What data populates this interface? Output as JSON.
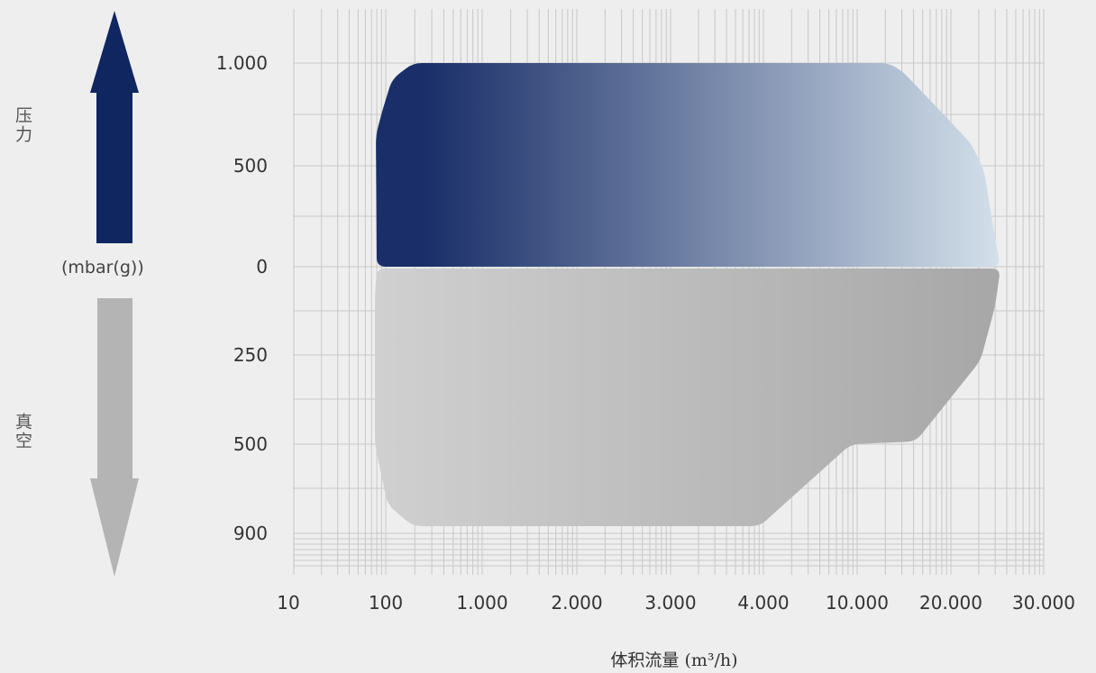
{
  "labels": {
    "pressure": "压力",
    "vacuum": "真空",
    "unit": "(mbar(g))"
  },
  "colors": {
    "background": "#eeeeee",
    "grid": "#c8c8c8",
    "pressure_arrow": "#0f2660",
    "vacuum_arrow": "#b4b4b4",
    "pressure_gradient_start": "#1a2f69",
    "pressure_gradient_end": "#d3e0ea",
    "vacuum_gradient_start": "#d0d0d0",
    "vacuum_gradient_end": "#a7a7a7"
  },
  "chart_data": {
    "type": "area",
    "xlabel": "体积流量 (m³/h)",
    "x_ticks": [
      "10",
      "100",
      "1.000",
      "2.000",
      "3.000",
      "4.000",
      "10.000",
      "20.000",
      "30.000"
    ],
    "pressure_ticks": [
      "1.000",
      "500",
      "0"
    ],
    "vacuum_ticks": [
      "250",
      "500",
      "900"
    ],
    "grid": true,
    "series": [
      {
        "region": "pressure",
        "points": [
          {
            "x": "100",
            "y": 0
          },
          {
            "x": "100",
            "y": 680
          },
          {
            "x": "100",
            "y": 1000
          },
          {
            "x": "10.000",
            "y": 1000
          },
          {
            "x": "20.000",
            "y": 600
          },
          {
            "x": "30.000",
            "y": 0
          }
        ]
      },
      {
        "region": "vacuum",
        "points": [
          {
            "x": "100",
            "y": 0
          },
          {
            "x": "100",
            "y": 500
          },
          {
            "x": "100",
            "y": 900
          },
          {
            "x": "4.000",
            "y": 900
          },
          {
            "x": "10.000",
            "y": 500
          },
          {
            "x": "20.000",
            "y": 500
          },
          {
            "x": "30.000",
            "y": 0
          }
        ]
      }
    ]
  }
}
